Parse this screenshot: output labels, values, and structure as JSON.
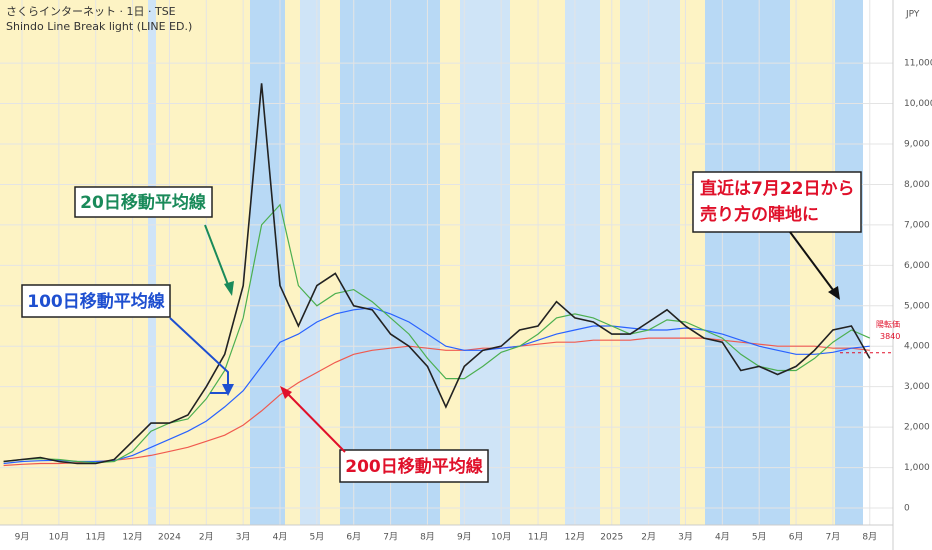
{
  "chart_data": {
    "type": "line",
    "title": "さくらインターネット · 1日 · TSE",
    "subtitle": "Shindo Line Break light (LINE ED.)",
    "currency": "JPY",
    "categories": [
      null,
      "9月",
      null,
      "10月",
      null,
      "11月",
      null,
      "12月",
      null,
      "2024",
      null,
      "2月",
      null,
      "3月",
      null,
      "4月",
      null,
      "5月",
      null,
      "6月",
      null,
      "7月",
      null,
      "8月",
      null,
      "9月",
      null,
      "10月",
      null,
      "11月",
      null,
      "12月",
      null,
      "2025",
      null,
      "2月",
      null,
      "3月",
      null,
      "4月",
      null,
      "5月",
      null,
      "6月",
      null,
      "7月",
      null,
      "8月"
    ],
    "series": [
      {
        "color": "#f05a4f",
        "values": [
          1050,
          1080,
          1100,
          1100,
          1120,
          1150,
          1180,
          1230,
          1300,
          1400,
          1500,
          1650,
          1800,
          2050,
          2400,
          2800,
          3100,
          3350,
          3600,
          3800,
          3900,
          3950,
          4000,
          3950,
          3900,
          3900,
          3950,
          3950,
          4000,
          4050,
          4100,
          4100,
          4150,
          4150,
          4150,
          4200,
          4200,
          4200,
          4200,
          4150,
          4100,
          4050,
          4000,
          4000,
          4000,
          3950,
          3950,
          3900
        ]
      },
      {
        "color": "#2962ff",
        "values": [
          1100,
          1150,
          1170,
          1180,
          1150,
          1150,
          1170,
          1300,
          1500,
          1700,
          1900,
          2150,
          2500,
          2900,
          3500,
          4100,
          4300,
          4600,
          4800,
          4900,
          4950,
          4800,
          4600,
          4300,
          4000,
          3900,
          3900,
          3950,
          4000,
          4150,
          4300,
          4400,
          4500,
          4500,
          4450,
          4400,
          4400,
          4450,
          4400,
          4300,
          4150,
          4000,
          3900,
          3800,
          3800,
          3850,
          3950,
          4000
        ]
      },
      {
        "color": "#4caf50",
        "values": [
          1150,
          1200,
          1220,
          1200,
          1150,
          1120,
          1150,
          1400,
          1900,
          2100,
          2200,
          2700,
          3400,
          4700,
          7000,
          7500,
          5500,
          5000,
          5300,
          5400,
          5100,
          4700,
          4300,
          3700,
          3200,
          3200,
          3500,
          3850,
          4000,
          4300,
          4700,
          4800,
          4700,
          4500,
          4300,
          4400,
          4650,
          4600,
          4400,
          4200,
          3800,
          3500,
          3400,
          3400,
          3700,
          4100,
          4400,
          4200
        ]
      },
      {
        "color": "#222222",
        "values": [
          1150,
          1200,
          1250,
          1150,
          1100,
          1100,
          1200,
          1650,
          2100,
          2100,
          2300,
          3000,
          3800,
          5500,
          10500,
          5500,
          4500,
          5500,
          5800,
          5000,
          4900,
          4300,
          4000,
          3500,
          2500,
          3500,
          3900,
          4000,
          4400,
          4500,
          5100,
          4700,
          4600,
          4300,
          4300,
          4600,
          4900,
          4500,
          4200,
          4100,
          3400,
          3500,
          3300,
          3500,
          3900,
          4400,
          4500,
          3700
        ]
      }
    ],
    "ylim": [
      -420,
      12560
    ],
    "yticks": [
      0,
      {
        "value": 1000,
        "label": "1,000"
      },
      {
        "value": 2000,
        "label": "2,000"
      },
      {
        "value": 3000,
        "label": "3,000"
      },
      {
        "value": 4000,
        "label": "4,000"
      },
      {
        "value": 5000,
        "label": "5,000"
      },
      {
        "value": 6000,
        "label": "6,000"
      },
      {
        "value": 7000,
        "label": "7,000"
      },
      {
        "value": 8000,
        "label": "8,000"
      },
      {
        "value": 9000,
        "label": "9,000"
      },
      {
        "value": 10000,
        "label": "10,000"
      },
      {
        "value": 11000,
        "label": "11,000"
      }
    ],
    "grid": true,
    "reversal": {
      "label": "陽転価",
      "value": 3840
    },
    "annotations": {
      "ma20": "20日移動平均線",
      "ma100": "100日移動平均線",
      "ma200": "200日移動平均線",
      "recent": [
        "直近は7月22日から",
        "売り方の陣地に"
      ]
    }
  }
}
